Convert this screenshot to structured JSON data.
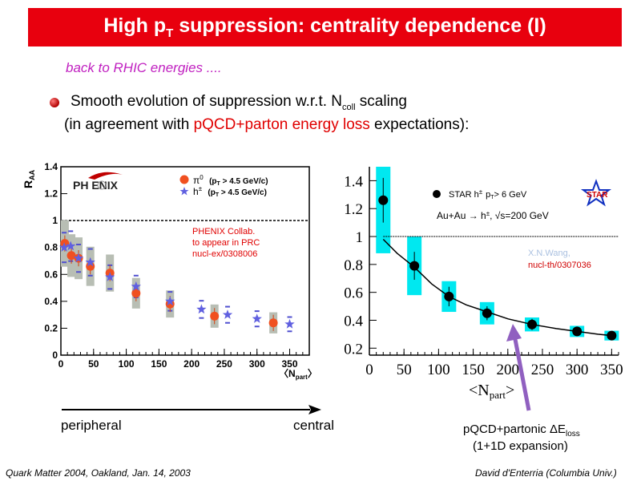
{
  "title": {
    "pre": "High p",
    "sub": "T",
    "post": " suppression: centrality dependence (I)"
  },
  "subtitle": "back to RHIC energies ....",
  "bullet": {
    "line1_pre": "Smooth evolution of suppression w.r.t. N",
    "line1_sub": "coll",
    "line1_post": " scaling",
    "line2_pre": "(in agreement with ",
    "line2_red": "pQCD+parton energy loss",
    "line2_post": " expectations):"
  },
  "phenix_chart": {
    "type": "scatter",
    "ylabel_main": "R",
    "ylabel_sub": "AA",
    "xlabel_main": "N",
    "xlabel_sub": "part",
    "xlim": [
      0,
      380
    ],
    "ylim": [
      0,
      1.4
    ],
    "xticks": [
      0,
      50,
      100,
      150,
      200,
      250,
      300,
      350
    ],
    "yticks": [
      "0",
      "0.2",
      "0.4",
      "0.6",
      "0.8",
      "1",
      "1.2",
      "1.4"
    ],
    "logo": "PH  ENIX",
    "legend": [
      {
        "symbol": "π",
        "sup": "0",
        "label": "(p",
        "label_sub": "T",
        "label_post": " > 4.5 GeV/c)",
        "color": "#f05020"
      },
      {
        "symbol": "h",
        "sup": "±",
        "label": "(p",
        "label_sub": "T",
        "label_post": " > 4.5 GeV/c)",
        "color": "#6060e0"
      }
    ],
    "annotation": [
      "PHENIX Collab.",
      "to appear in PRC",
      "nucl-ex/0308006"
    ],
    "series": [
      {
        "name": "π0",
        "x": [
          6,
          16,
          27,
          45,
          75,
          115,
          167,
          235,
          325
        ],
        "y": [
          0.83,
          0.74,
          0.72,
          0.66,
          0.61,
          0.46,
          0.38,
          0.29,
          0.24
        ]
      },
      {
        "name": "h±",
        "x": [
          5,
          15,
          27,
          45,
          75,
          115,
          167,
          215,
          255,
          300,
          350
        ],
        "y": [
          0.8,
          0.81,
          0.72,
          0.69,
          0.58,
          0.51,
          0.4,
          0.34,
          0.3,
          0.27,
          0.23
        ]
      }
    ]
  },
  "star_chart": {
    "type": "line",
    "xlabel_main": "N",
    "xlabel_sub": "part",
    "xlim": [
      0,
      360
    ],
    "ylim": [
      0.15,
      1.5
    ],
    "xticks": [
      0,
      50,
      100,
      150,
      200,
      250,
      300,
      350
    ],
    "yticks": [
      "0.2",
      "0.4",
      "0.6",
      "0.8",
      "1",
      "1.2",
      "1.4"
    ],
    "legend_label": "STAR h",
    "legend_sup": "±",
    "legend_cut": "p",
    "legend_cut_sub": "T",
    "legend_cut_post": "> 6 GeV",
    "reaction": "Au+Au  →  h",
    "reaction_sup": "±",
    "reaction_energy": ", √s=200 GeV",
    "logo": "STAR",
    "theory_label": [
      "X.N.Wang,",
      "nucl-th/0307036"
    ],
    "points": {
      "x": [
        20,
        65,
        115,
        170,
        235,
        300,
        350
      ],
      "y": [
        1.26,
        0.79,
        0.57,
        0.45,
        0.37,
        0.32,
        0.29
      ]
    },
    "curve": {
      "x": [
        20,
        40,
        65,
        90,
        115,
        140,
        170,
        200,
        235,
        270,
        300,
        330,
        350
      ],
      "y": [
        0.98,
        0.88,
        0.78,
        0.66,
        0.57,
        0.51,
        0.46,
        0.41,
        0.37,
        0.34,
        0.32,
        0.3,
        0.29
      ]
    }
  },
  "arrow_labels": {
    "left": "peripheral",
    "right": "central"
  },
  "pqcd_label": {
    "main": "pQCD+partonic ΔE",
    "sub": "loss",
    "line2": "(1+1D expansion)"
  },
  "footer": {
    "left": "Quark Matter 2004, Oakland, Jan. 14, 2003",
    "right": "David d'Enterria (Columbia Univ.)"
  },
  "colors": {
    "title_bg": "#e8000e",
    "subtitle": "#c020c0",
    "red_text": "#e00000",
    "cyan_box": "#00e8f0",
    "pqcd_arrow": "#9060c0"
  }
}
